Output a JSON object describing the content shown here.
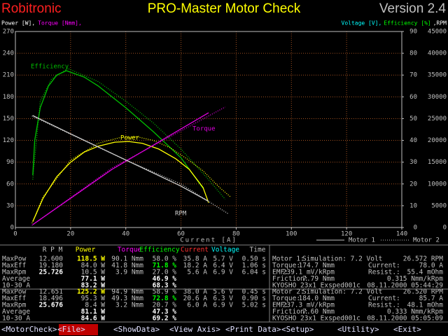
{
  "header": {
    "brand": "Robitronic",
    "title": "PRO-Master Motor Check",
    "version": "Version 2.4"
  },
  "chart_data": {
    "type": "line",
    "y_label_parts": [
      {
        "text": "Power [W],",
        "color": "#ffffff"
      },
      {
        "text": "Torque [Nmm],",
        "color": "#ff00ff"
      }
    ],
    "y2_label_parts": [
      {
        "text": "Voltage [V],",
        "color": "#00ffff"
      },
      {
        "text": "Efficiency [%]",
        "color": "#00ff00"
      },
      {
        "text": ",RPM",
        "color": "#ffffff"
      }
    ],
    "x_label": "Current [A]",
    "xlim": [
      0,
      140
    ],
    "xticks": [
      0,
      20,
      40,
      60,
      80,
      100,
      120,
      140
    ],
    "ylim": [
      0,
      270
    ],
    "yticks": [
      0,
      30,
      60,
      90,
      120,
      150,
      180,
      210,
      240,
      270
    ],
    "y2lim": [
      0,
      90
    ],
    "y2ticks": [
      0,
      10,
      20,
      30,
      40,
      50,
      60,
      70,
      80,
      90
    ],
    "y3lim": [
      0,
      45000
    ],
    "y3ticks": [
      0,
      5000,
      10000,
      15000,
      20000,
      25000,
      30000,
      35000,
      40000,
      45000
    ],
    "grid": true,
    "legend": [
      {
        "name": "Motor 1",
        "dash": "solid"
      },
      {
        "name": "Motor 2",
        "dash": "dotted"
      }
    ],
    "series": [
      {
        "name": "Efficiency",
        "color": "#00c000",
        "axis": "y2",
        "motor": 0,
        "x": [
          6.3,
          7,
          9,
          12,
          15,
          18.5,
          25,
          30,
          40,
          50,
          60,
          68
        ],
        "values": [
          24,
          40,
          55,
          65,
          70,
          72,
          69,
          65,
          55,
          44,
          32,
          18
        ]
      },
      {
        "color": "#00c000",
        "axis": "y2",
        "motor": 1,
        "x": [
          6.3,
          9,
          13,
          19,
          30,
          40,
          50,
          60,
          70,
          76
        ],
        "values": [
          22,
          58,
          68,
          73,
          67,
          58,
          48,
          36,
          22,
          13
        ]
      },
      {
        "name": "Power",
        "color": "#ffff00",
        "axis": "y",
        "motor": 0,
        "x": [
          6.3,
          10,
          15,
          20,
          25,
          30,
          36,
          41,
          46,
          52,
          58,
          63,
          68,
          70
        ],
        "values": [
          8,
          40,
          70,
          90,
          104,
          112,
          117.5,
          118.5,
          116,
          108,
          95,
          80,
          55,
          34
        ]
      },
      {
        "color": "#ffff00",
        "axis": "y",
        "motor": 1,
        "x": [
          6,
          10,
          20,
          30,
          38,
          44,
          50,
          56,
          62,
          68,
          74,
          78
        ],
        "values": [
          6,
          42,
          93,
          116,
          124,
          125,
          120,
          110,
          95,
          78,
          55,
          42
        ]
      },
      {
        "name": "Torque",
        "color": "#e000e0",
        "axis": "y",
        "motor": 0,
        "x": [
          6.3,
          35,
          70
        ],
        "values": [
          4,
          80,
          158
        ]
      },
      {
        "color": "#e000e0",
        "axis": "y",
        "motor": 1,
        "x": [
          6,
          35,
          76
        ],
        "values": [
          3,
          82,
          166
        ]
      },
      {
        "name": "RPM",
        "color": "#d0d0d0",
        "axis": "y3",
        "motor": 0,
        "x": [
          6.3,
          20,
          40,
          60,
          70
        ],
        "values": [
          25700,
          21500,
          15500,
          9500,
          6000
        ]
      },
      {
        "color": "#d0d0d0",
        "axis": "y3",
        "motor": 1,
        "x": [
          6,
          20,
          40,
          60,
          77
        ],
        "values": [
          25600,
          21400,
          15500,
          10000,
          3200
        ]
      }
    ]
  },
  "table": {
    "columns": [
      {
        "text": "R P M",
        "color": "#c0c0c0"
      },
      {
        "text": "Power",
        "color": "#ffff00"
      },
      {
        "text": "Torque",
        "color": "#ff00ff"
      },
      {
        "text": "Efficiency",
        "color": "#00ff00"
      },
      {
        "text": "Current",
        "color": "#ff3030"
      },
      {
        "text": "Voltage",
        "color": "#00ffff"
      },
      {
        "text": "Time",
        "color": "#c0c0c0"
      }
    ],
    "motors": [
      {
        "rows": [
          [
            "MaxPow",
            "12.600",
            "118.5 W",
            "90.1 Nmm",
            "58.0 %",
            "35.8 A",
            "5.7 V",
            "0.50 s"
          ],
          [
            "MaxEff",
            "19.180",
            "84.0 W",
            "41.8 Nmm",
            "71.8 %",
            "18.2 A",
            "6.4 V",
            "1.06 s"
          ],
          [
            "MaxRpm",
            "25.726",
            "10.5 W",
            "3.9 Nmm",
            "27.0 %",
            "5.6 A",
            "6.9 V",
            "6.04 s"
          ]
        ],
        "summary": [
          {
            "label": "Average",
            "power": "77.1 W",
            "efficiency": "46.9 %"
          },
          {
            "label": "10-30 A",
            "power": "83.2 W",
            "efficiency": "68.3 %"
          }
        ]
      },
      {
        "rows": [
          [
            "MaxPow",
            "12.651",
            "125.2 W",
            "94.9 Nmm",
            "58.9 %",
            "38.0 A",
            "5.6 V",
            "0.45 s"
          ],
          [
            "MaxEff",
            "18.496",
            "95.3 W",
            "49.3 Nmm",
            "72.8 %",
            "20.6 A",
            "6.3 V",
            "0.90 s"
          ],
          [
            "MaxRpm",
            "25.676",
            "8.4 W",
            "3.2 Nmm",
            "20.7 %",
            "6.0 A",
            "6.9 V",
            "5.02 s"
          ]
        ],
        "summary": [
          {
            "label": "Average",
            "power": "81.1 W",
            "efficiency": "47.3 %"
          },
          {
            "label": "10-30 A",
            "power": "84.6 W",
            "efficiency": "69.2 %"
          }
        ]
      }
    ]
  },
  "motor_info": [
    {
      "lines": [
        [
          "Motor 1:",
          "Simulation: 7.2 Volt",
          "26.572 RPM"
        ],
        [
          "Torque:",
          "174.7 Nmm",
          "Current:",
          "78.0 A"
        ],
        [
          "EMF:",
          "239.1 mV/kRpm",
          "Resist.:",
          "55.4 mOhm"
        ],
        [
          "Friction:",
          "7.79 Nmm",
          "0.315 Nmm/kRpm"
        ],
        [
          "KYOSHO 23x1 Exsped001c",
          "08.11.2000 05:44:29"
        ]
      ]
    },
    {
      "lines": [
        [
          "Motor 2:",
          "Simulation: 7.2 Volt",
          "26.520 RPM"
        ],
        [
          "Torque:",
          "184.0 Nmm",
          "Current:",
          "85.7 A"
        ],
        [
          "EMF:",
          "237.3 mV/kRpm",
          "Resist.:",
          "48.1 mOhm"
        ],
        [
          "Friction:",
          "7.60 Nmm",
          "0.333 Nmm/kRpm"
        ],
        [
          "KYOSHO 23x1 Exsped001c",
          "08.11.2000 05:05:09"
        ]
      ]
    }
  ],
  "menu": {
    "items": [
      "<MotorCheck>",
      "<File>",
      "<ShowData>",
      "<View Axis>",
      "<Print Data>",
      "<Setup>",
      "<Utility>",
      "<Exit>"
    ],
    "active": 1
  }
}
